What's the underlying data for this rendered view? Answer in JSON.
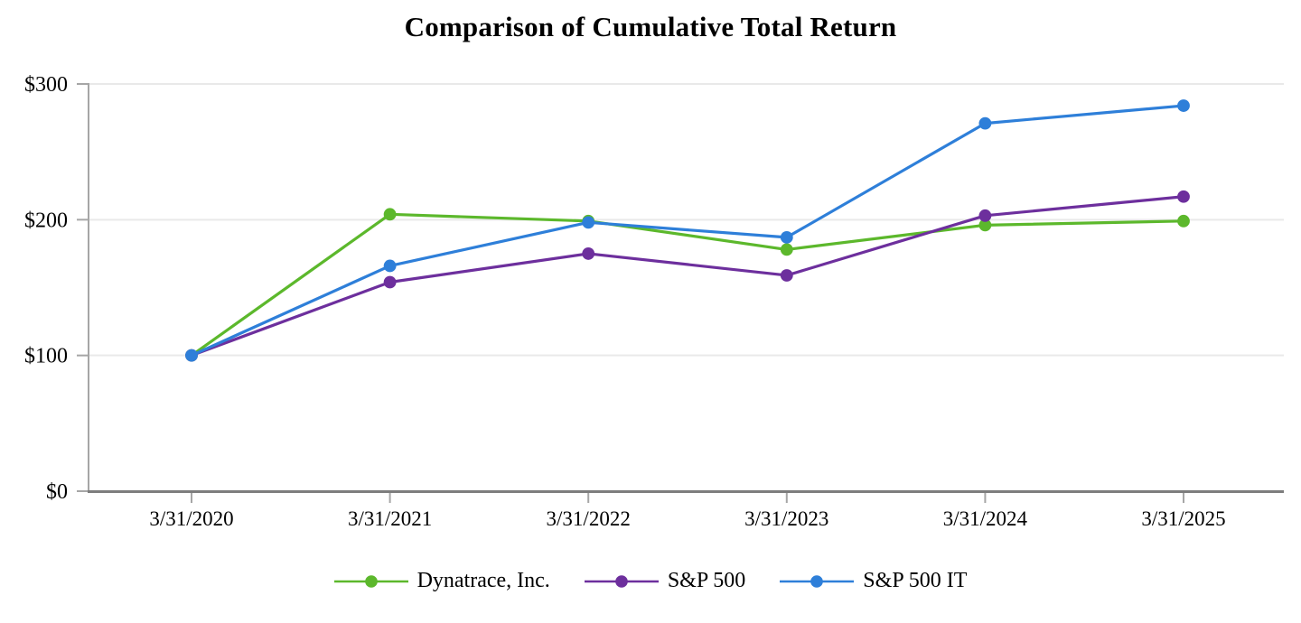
{
  "title": "Comparison of Cumulative Total Return",
  "colors": {
    "background": "#ffffff",
    "gridline": "#e9e9e9",
    "x_axis_line": "#7d7d7d",
    "y_axis_line": "#a6a6a6",
    "tick": "#a6a6a6",
    "text": "#000000",
    "dynatrace_green": "#5cb82c",
    "sp500_purple": "#6d2f9d",
    "sp500it_blue": "#2e7fd9"
  },
  "chart_data": {
    "type": "line",
    "title": "Comparison of Cumulative Total Return",
    "xlabel": "",
    "ylabel": "",
    "categories": [
      "3/31/2020",
      "3/31/2021",
      "3/31/2022",
      "3/31/2023",
      "3/31/2024",
      "3/31/2025"
    ],
    "series": [
      {
        "name": "Dynatrace, Inc.",
        "color": "#5cb82c",
        "values": [
          100,
          204,
          199,
          178,
          196,
          199
        ]
      },
      {
        "name": "S&P 500",
        "color": "#6d2f9d",
        "values": [
          100,
          154,
          175,
          159,
          203,
          217
        ]
      },
      {
        "name": "S&P 500 IT",
        "color": "#2e7fd9",
        "values": [
          100,
          166,
          198,
          187,
          271,
          284
        ]
      }
    ],
    "ylim": [
      0,
      300
    ],
    "yticks": [
      0,
      100,
      200,
      300
    ],
    "ytick_labels": [
      "$0",
      "$100",
      "$200",
      "$300"
    ],
    "grid": true,
    "marker": "circle",
    "legend_position": "bottom"
  }
}
